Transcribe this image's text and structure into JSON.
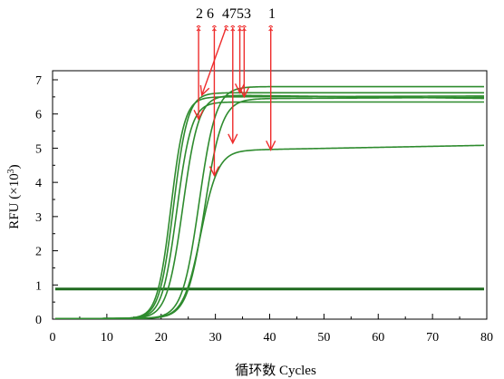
{
  "chart_data": {
    "type": "line",
    "xlabel": "循环数 Cycles",
    "ylabel_main": "RFU (×10",
    "ylabel_sup": "3",
    "ylabel_close": ")",
    "xlim": [
      0,
      80
    ],
    "ylim": [
      0,
      7
    ],
    "xticks": [
      0,
      10,
      20,
      30,
      40,
      50,
      60,
      70,
      80
    ],
    "yticks": [
      0,
      1,
      2,
      3,
      4,
      5,
      6,
      7
    ],
    "grid": false,
    "threshold": {
      "y": 0.88,
      "color": "#1f6a1f"
    },
    "curve_color": "#2e8b2e",
    "arrow_color": "#ee2c2c",
    "marker_labels": {
      "group_a": "2 6",
      "group_b": "4753",
      "group_c": "1"
    },
    "curves": [
      {
        "baseline": 0.02,
        "plateau": 6.62,
        "midpoint": 22.3,
        "slope": 1.3,
        "drift": 0.0
      },
      {
        "baseline": 0.02,
        "plateau": 6.35,
        "midpoint": 22.9,
        "slope": 1.35,
        "drift": 0.0
      },
      {
        "baseline": 0.02,
        "plateau": 6.55,
        "midpoint": 24.0,
        "slope": 1.45,
        "drift": -0.002
      },
      {
        "baseline": 0.02,
        "plateau": 6.8,
        "midpoint": 27.0,
        "slope": 1.55,
        "drift": 0.0
      },
      {
        "baseline": 0.02,
        "plateau": 6.45,
        "midpoint": 28.0,
        "slope": 1.6,
        "drift": 0.0008
      },
      {
        "baseline": 0.02,
        "plateau": 4.95,
        "midpoint": 27.3,
        "slope": 1.6,
        "drift": 0.003
      },
      {
        "baseline": 0.02,
        "plateau": 6.5,
        "midpoint": 21.8,
        "slope": 1.25,
        "drift": 0.0005
      }
    ],
    "arrows": [
      {
        "label_group": "2 6",
        "x_from": 26.9,
        "y_from": 8.6,
        "x_to": 26.9,
        "y_to": 5.85
      },
      {
        "label_group": "2 6",
        "x_from": 29.8,
        "y_from": 8.6,
        "x_to": 29.8,
        "y_to": 4.2
      },
      {
        "label_group": "4753",
        "x_from": 32.0,
        "y_from": 8.6,
        "x_to": 27.5,
        "y_to": 6.55
      },
      {
        "label_group": "4753",
        "x_from": 33.2,
        "y_from": 8.6,
        "x_to": 33.2,
        "y_to": 5.15
      },
      {
        "label_group": "4753",
        "x_from": 34.5,
        "y_from": 8.6,
        "x_to": 34.5,
        "y_to": 6.62
      },
      {
        "label_group": "4753",
        "x_from": 35.3,
        "y_from": 8.6,
        "x_to": 35.3,
        "y_to": 6.5
      },
      {
        "label_group": "1",
        "x_from": 40.2,
        "y_from": 8.6,
        "x_to": 40.2,
        "y_to": 4.95
      }
    ]
  }
}
